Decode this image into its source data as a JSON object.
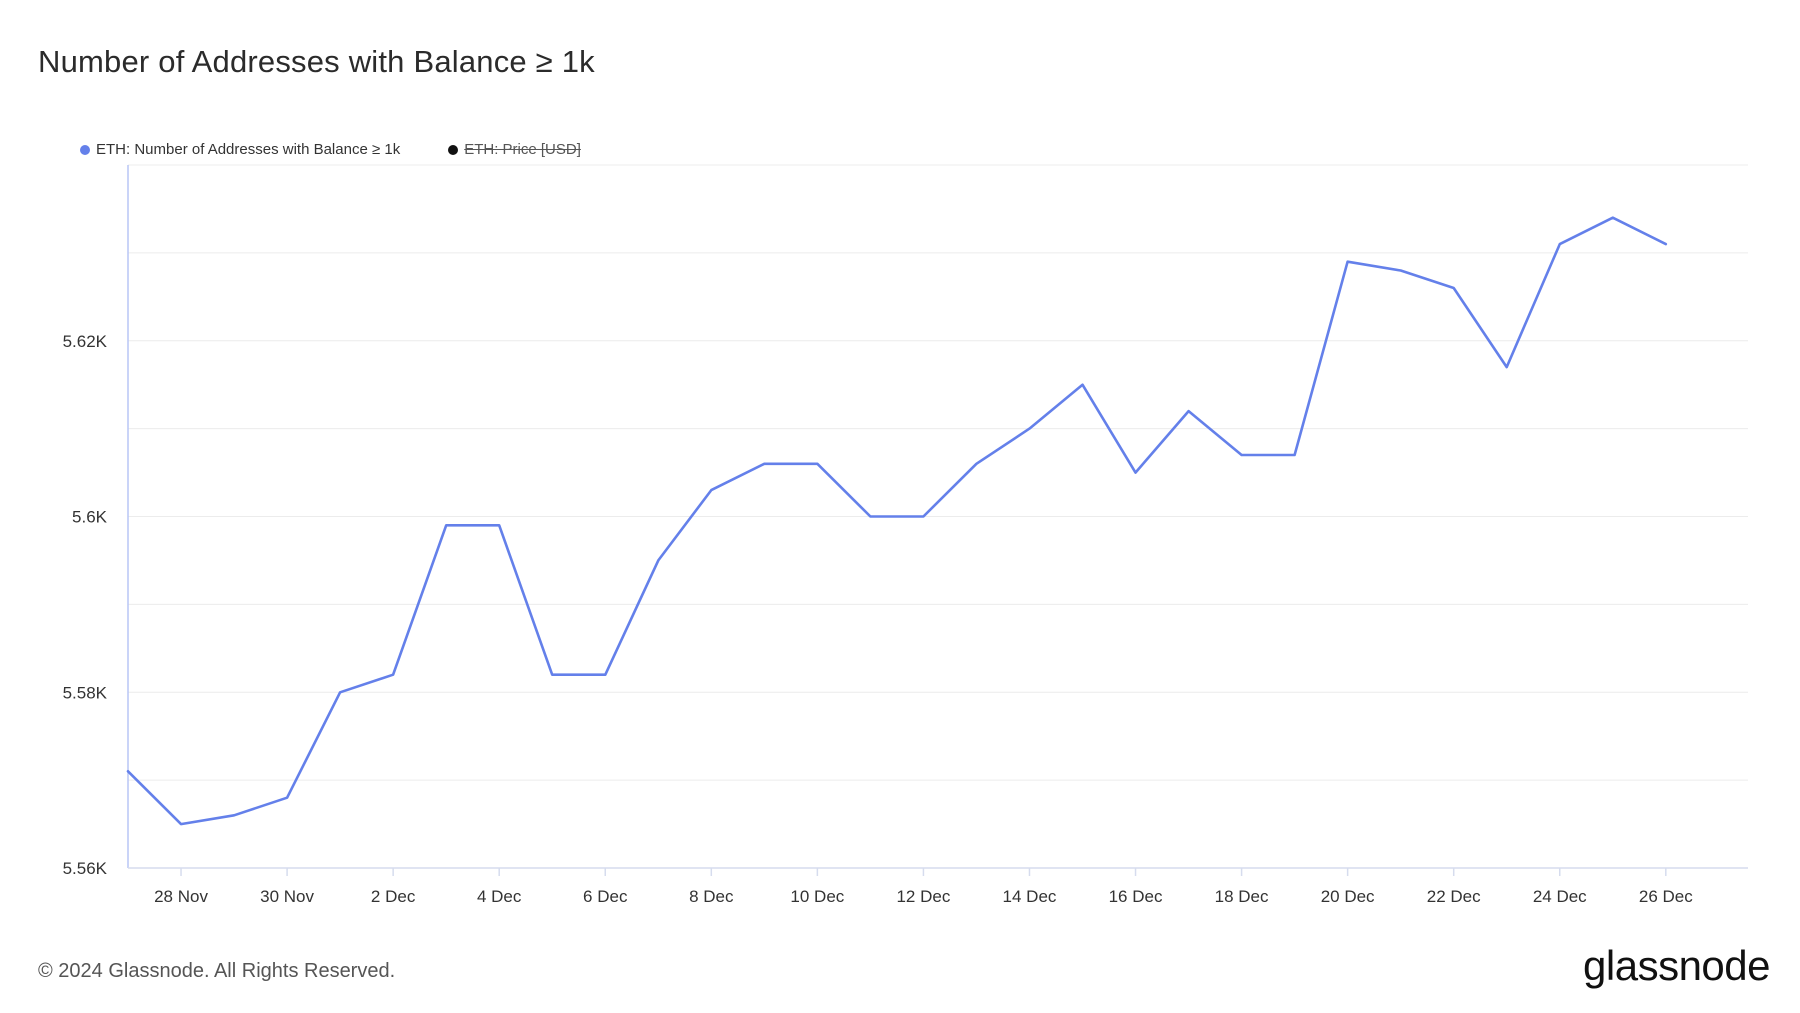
{
  "header": {
    "title": "Number of Addresses with Balance ≥ 1k"
  },
  "legend": [
    {
      "label": "ETH: Number of Addresses with Balance ≥ 1k",
      "color": "#6480ea",
      "active": true
    },
    {
      "label": "ETH: Price [USD]",
      "color": "#111111",
      "active": false
    }
  ],
  "chart_data": {
    "type": "line",
    "title": "Number of Addresses with Balance ≥ 1k",
    "xlabel": "",
    "ylabel": "",
    "ylim": [
      5560,
      5640
    ],
    "grid": true,
    "legend_position": "top-left",
    "x_ticks": [
      "28 Nov",
      "30 Nov",
      "2 Dec",
      "4 Dec",
      "6 Dec",
      "8 Dec",
      "10 Dec",
      "12 Dec",
      "14 Dec",
      "16 Dec",
      "18 Dec",
      "20 Dec",
      "22 Dec",
      "24 Dec",
      "26 Dec"
    ],
    "y_ticks": [
      {
        "value": 5560,
        "label": "5.56K"
      },
      {
        "value": 5580,
        "label": "5.58K"
      },
      {
        "value": 5600,
        "label": "5.6K"
      },
      {
        "value": 5620,
        "label": "5.62K"
      }
    ],
    "series": [
      {
        "name": "ETH: Number of Addresses with Balance ≥ 1k",
        "color": "#6480ea",
        "x": [
          "2024-11-27",
          "2024-11-28",
          "2024-11-29",
          "2024-11-30",
          "2024-12-01",
          "2024-12-02",
          "2024-12-03",
          "2024-12-04",
          "2024-12-05",
          "2024-12-06",
          "2024-12-07",
          "2024-12-08",
          "2024-12-09",
          "2024-12-10",
          "2024-12-11",
          "2024-12-12",
          "2024-12-13",
          "2024-12-14",
          "2024-12-15",
          "2024-12-16",
          "2024-12-17",
          "2024-12-18",
          "2024-12-19",
          "2024-12-20",
          "2024-12-21",
          "2024-12-22",
          "2024-12-23",
          "2024-12-24",
          "2024-12-25",
          "2024-12-26"
        ],
        "values": [
          5571,
          5565,
          5566,
          5568,
          5580,
          5582,
          5599,
          5599,
          5582,
          5582,
          5595,
          5603,
          5606,
          5606,
          5600,
          5600,
          5606,
          5610,
          5615,
          5605,
          5612,
          5607,
          5607,
          5629,
          5628,
          5626,
          5617,
          5631,
          5634,
          5631
        ]
      }
    ]
  },
  "footer": {
    "copyright": "© 2024 Glassnode. All Rights Reserved.",
    "brand": "glassnode"
  }
}
